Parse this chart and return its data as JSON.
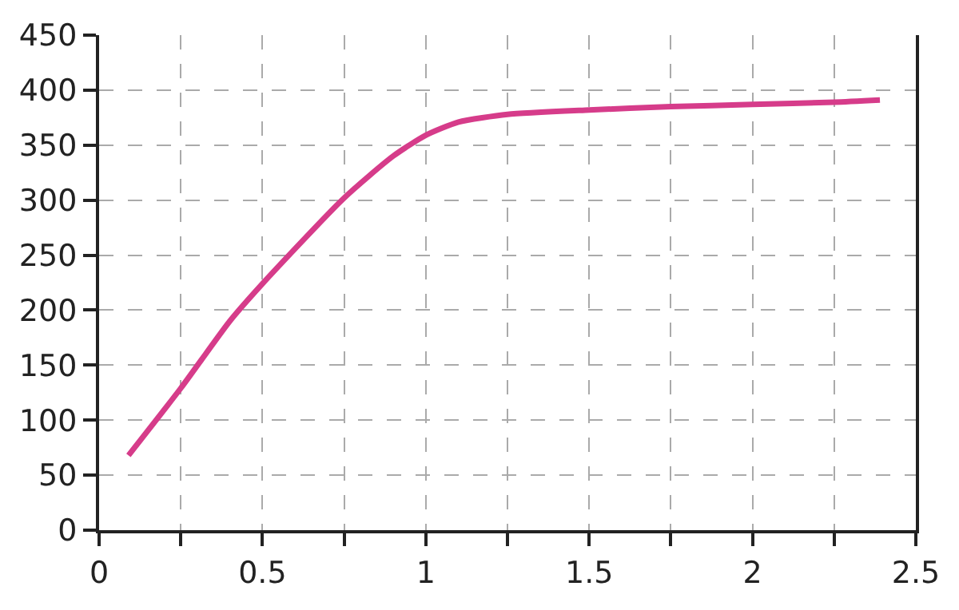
{
  "chart_data": {
    "type": "line",
    "x": [
      0.09,
      0.25,
      0.4,
      0.5,
      0.75,
      0.9,
      1.0,
      1.1,
      1.25,
      1.5,
      1.75,
      2.0,
      2.25,
      2.39
    ],
    "series": [
      {
        "color": "#d63c8a",
        "values": [
          68,
          129,
          190,
          224,
          302,
          340,
          359,
          371,
          378,
          382,
          385,
          387,
          389,
          391
        ]
      }
    ],
    "xlim": [
      0,
      2.5
    ],
    "xticks": [
      0,
      {
        "value": 0.25,
        "label": null
      },
      0.5,
      {
        "value": 0.75,
        "label": null
      },
      1,
      {
        "value": 1.25,
        "label": null
      },
      1.5,
      {
        "value": 1.75,
        "label": null
      },
      2,
      {
        "value": 2.25,
        "label": null
      },
      2.5
    ],
    "ylim": [
      0,
      450
    ],
    "yticks": [
      0,
      50,
      100,
      150,
      200,
      250,
      300,
      350,
      400,
      450
    ],
    "grid": true,
    "marker": "none",
    "line_style": "solid"
  }
}
